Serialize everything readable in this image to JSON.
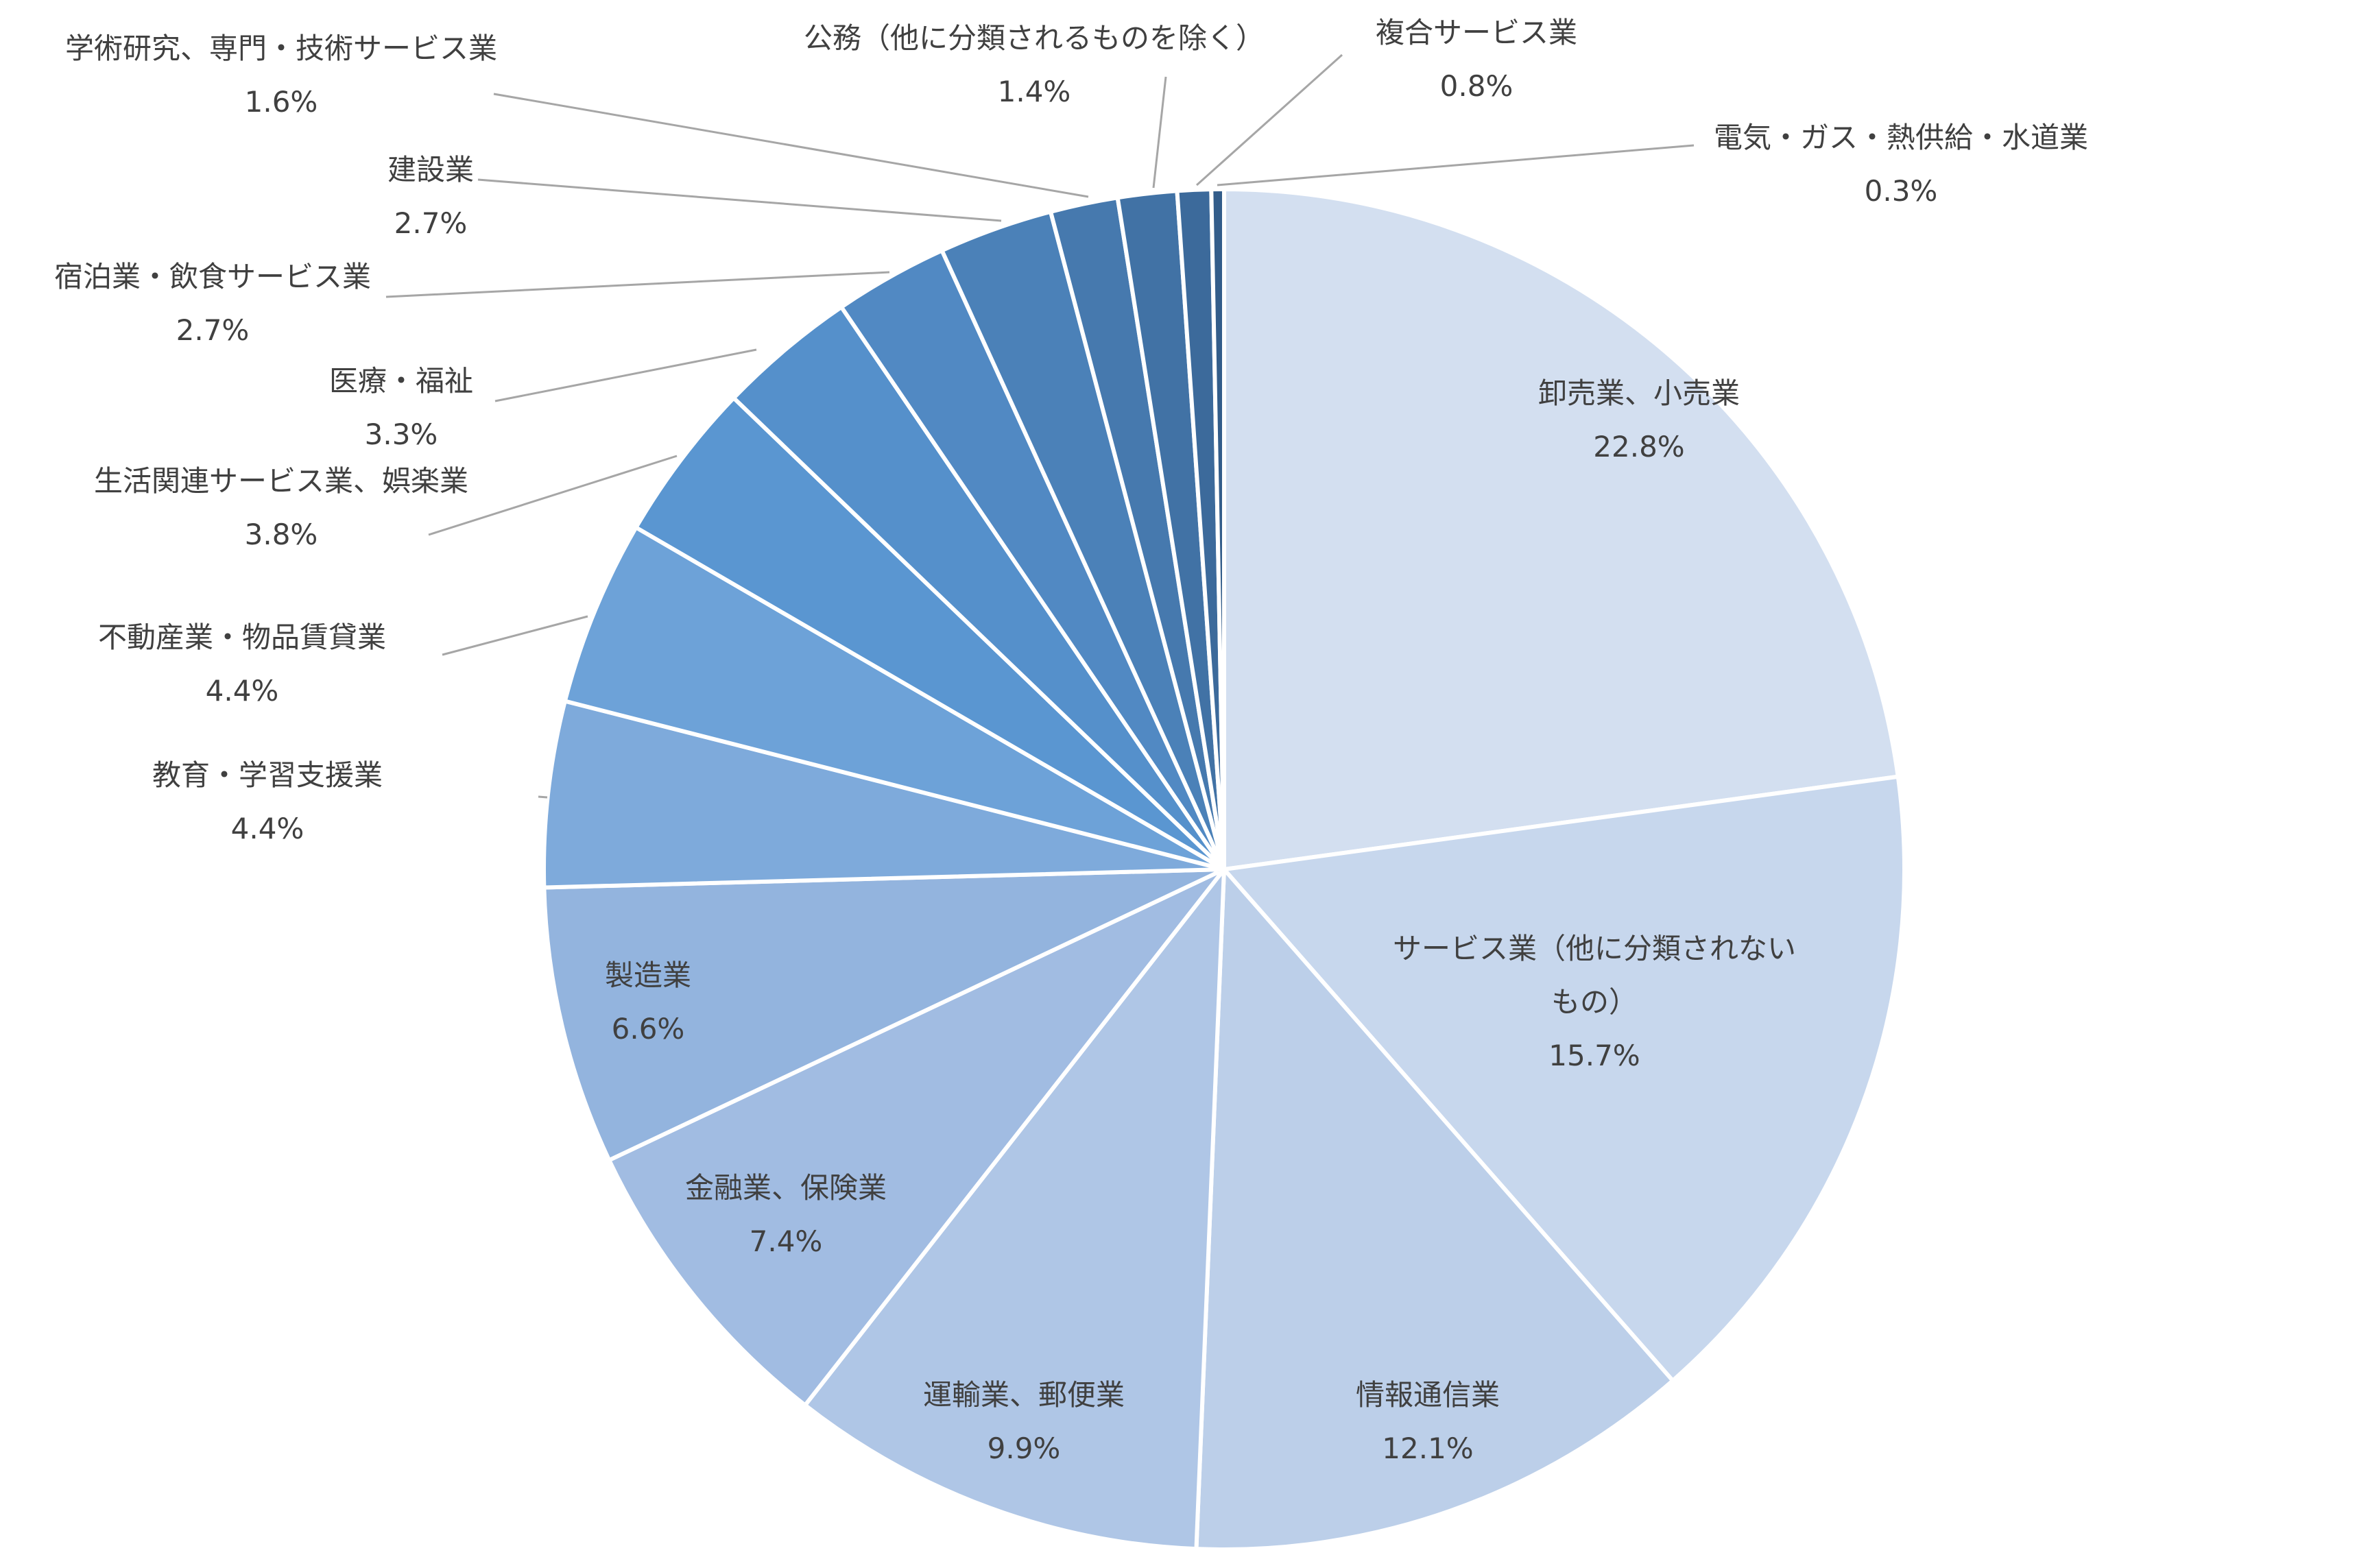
{
  "chart_data": {
    "type": "pie",
    "start_angle_deg": 0,
    "direction": "clockwise",
    "slices": [
      {
        "name": "卸売業、小売業",
        "name_lines": [
          "卸売業、小売業"
        ],
        "value": 22.8,
        "value_label": "22.8%",
        "color": "#d3dff0",
        "label_mode": "inside"
      },
      {
        "name": "サービス業（他に分類されないもの）",
        "name_lines": [
          "サービス業（他に分類されない",
          "もの）"
        ],
        "value": 15.7,
        "value_label": "15.7%",
        "color": "#c7d7ed",
        "label_mode": "inside"
      },
      {
        "name": "情報通信業",
        "name_lines": [
          "情報通信業"
        ],
        "value": 12.1,
        "value_label": "12.1%",
        "color": "#bccfe9",
        "label_mode": "inside"
      },
      {
        "name": "運輸業、郵便業",
        "name_lines": [
          "運輸業、郵便業"
        ],
        "value": 9.9,
        "value_label": "9.9%",
        "color": "#afc6e6",
        "label_mode": "inside"
      },
      {
        "name": "金融業、保険業",
        "name_lines": [
          "金融業、保険業"
        ],
        "value": 7.4,
        "value_label": "7.4%",
        "color": "#a1bce2",
        "label_mode": "inside"
      },
      {
        "name": "製造業",
        "name_lines": [
          "製造業"
        ],
        "value": 6.6,
        "value_label": "6.6%",
        "color": "#93b4de",
        "label_mode": "inside"
      },
      {
        "name": "教育・学習支援業",
        "name_lines": [
          "教育・学習支援業"
        ],
        "value": 4.4,
        "value_label": "4.4%",
        "color": "#7eaadb",
        "label_mode": "outside"
      },
      {
        "name": "不動産業・物品賃貸業",
        "name_lines": [
          "不動産業・物品賃貸業"
        ],
        "value": 4.4,
        "value_label": "4.4%",
        "color": "#6da2d8",
        "label_mode": "outside"
      },
      {
        "name": "生活関連サービス業、娯楽業",
        "name_lines": [
          "生活関連サービス業、娯楽業"
        ],
        "value": 3.8,
        "value_label": "3.8%",
        "color": "#5a96d1",
        "label_mode": "outside"
      },
      {
        "name": "医療・福祉",
        "name_lines": [
          "医療・福祉"
        ],
        "value": 3.3,
        "value_label": "3.3%",
        "color": "#5590cb",
        "label_mode": "outside"
      },
      {
        "name": "宿泊業・飲食サービス業",
        "name_lines": [
          "宿泊業・飲食サービス業"
        ],
        "value": 2.7,
        "value_label": "2.7%",
        "color": "#5189c3",
        "label_mode": "outside"
      },
      {
        "name": "建設業",
        "name_lines": [
          "建設業"
        ],
        "value": 2.7,
        "value_label": "2.7%",
        "color": "#4b81b8",
        "label_mode": "outside"
      },
      {
        "name": "学術研究、専門・技術サービス業",
        "name_lines": [
          "学術研究、専門・技術サービス業"
        ],
        "value": 1.6,
        "value_label": "1.6%",
        "color": "#4679ae",
        "label_mode": "outside"
      },
      {
        "name": "公務（他に分類されるものを除く）",
        "name_lines": [
          "公務（他に分類されるものを除く）"
        ],
        "value": 1.4,
        "value_label": "1.4%",
        "color": "#4172a5",
        "label_mode": "outside"
      },
      {
        "name": "複合サービス業",
        "name_lines": [
          "複合サービス業"
        ],
        "value": 0.8,
        "value_label": "0.8%",
        "color": "#3c6a9b",
        "label_mode": "outside"
      },
      {
        "name": "電気・ガス・熱供給・水道業",
        "name_lines": [
          "電気・ガス・熱供給・水道業"
        ],
        "value": 0.3,
        "value_label": "0.3%",
        "color": "#335d8a",
        "label_mode": "outside"
      }
    ]
  }
}
